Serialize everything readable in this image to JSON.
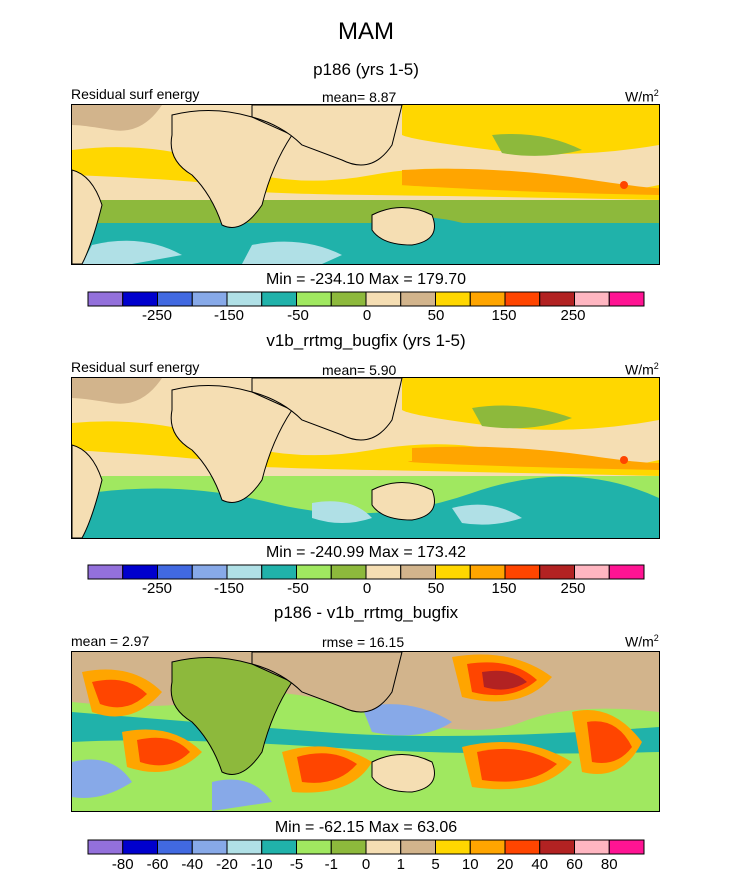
{
  "figure": {
    "title": "MAM",
    "panel1_title": "p186 (yrs 1-5)",
    "panel2_title": "v1b_rrtmg_bugfix (yrs 1-5)",
    "panel3_title": "p186 - v1b_rrtmg_bugfix"
  },
  "colors": {
    "main_scale": [
      "#9370DB",
      "#0000CD",
      "#4169E1",
      "#87A9E8",
      "#B0E0E6",
      "#20B2AA",
      "#A0E860",
      "#8DB93C",
      "#F5DEB3",
      "#D2B48C",
      "#FFD700",
      "#FFA500",
      "#FF4500",
      "#B22222",
      "#FFB6C1",
      "#FF1493"
    ],
    "diff_scale": [
      "#9370DB",
      "#0000CD",
      "#4169E1",
      "#87A9E8",
      "#B0E0E6",
      "#20B2AA",
      "#A0E860",
      "#8DB93C",
      "#F5DEB3",
      "#D2B48C",
      "#FFD700",
      "#FFA500",
      "#FF4500",
      "#B22222",
      "#FFB6C1",
      "#FF1493"
    ],
    "land": "#F5DEB3",
    "coast": "#000000"
  },
  "chart_data": [
    {
      "type": "heatmap",
      "title": "p186 (yrs 1-5)",
      "left_label": "Residual surf energy",
      "stat_text": "mean=   8.87",
      "units": "W/m",
      "units_sup": "2",
      "minmax_text": "Min = -234.10 Max = 179.70",
      "min": -234.1,
      "max": 179.7,
      "mean": 8.87,
      "colorbar_labels": [
        "-250",
        "-150",
        "-50",
        "0",
        "50",
        "150",
        "250"
      ],
      "colorbar_levels": [
        -300,
        -250,
        -200,
        -150,
        -100,
        -50,
        -25,
        0,
        25,
        50,
        100,
        150,
        200,
        250,
        300
      ]
    },
    {
      "type": "heatmap",
      "title": "v1b_rrtmg_bugfix (yrs 1-5)",
      "left_label": "Residual surf energy",
      "stat_text": "mean=   5.90",
      "units": "W/m",
      "units_sup": "2",
      "minmax_text": "Min = -240.99 Max = 173.42",
      "min": -240.99,
      "max": 173.42,
      "mean": 5.9,
      "colorbar_labels": [
        "-250",
        "-150",
        "-50",
        "0",
        "50",
        "150",
        "250"
      ],
      "colorbar_levels": [
        -300,
        -250,
        -200,
        -150,
        -100,
        -50,
        -25,
        0,
        25,
        50,
        100,
        150,
        200,
        250,
        300
      ]
    },
    {
      "type": "heatmap",
      "title": "p186 - v1b_rrtmg_bugfix",
      "left_label": "mean =   2.97",
      "stat_text": "rmse =  16.15",
      "units": "W/m",
      "units_sup": "2",
      "minmax_text": "Min = -62.15 Max = 63.06",
      "min": -62.15,
      "max": 63.06,
      "mean": 2.97,
      "rmse": 16.15,
      "colorbar_labels": [
        "-80",
        "-60",
        "-40",
        "-20",
        "-10",
        "-5",
        "-1",
        "0",
        "1",
        "5",
        "10",
        "20",
        "40",
        "60",
        "80"
      ],
      "colorbar_levels": [
        -80,
        -60,
        -40,
        -20,
        -10,
        -5,
        -1,
        0,
        1,
        5,
        10,
        20,
        40,
        60,
        80
      ]
    }
  ]
}
